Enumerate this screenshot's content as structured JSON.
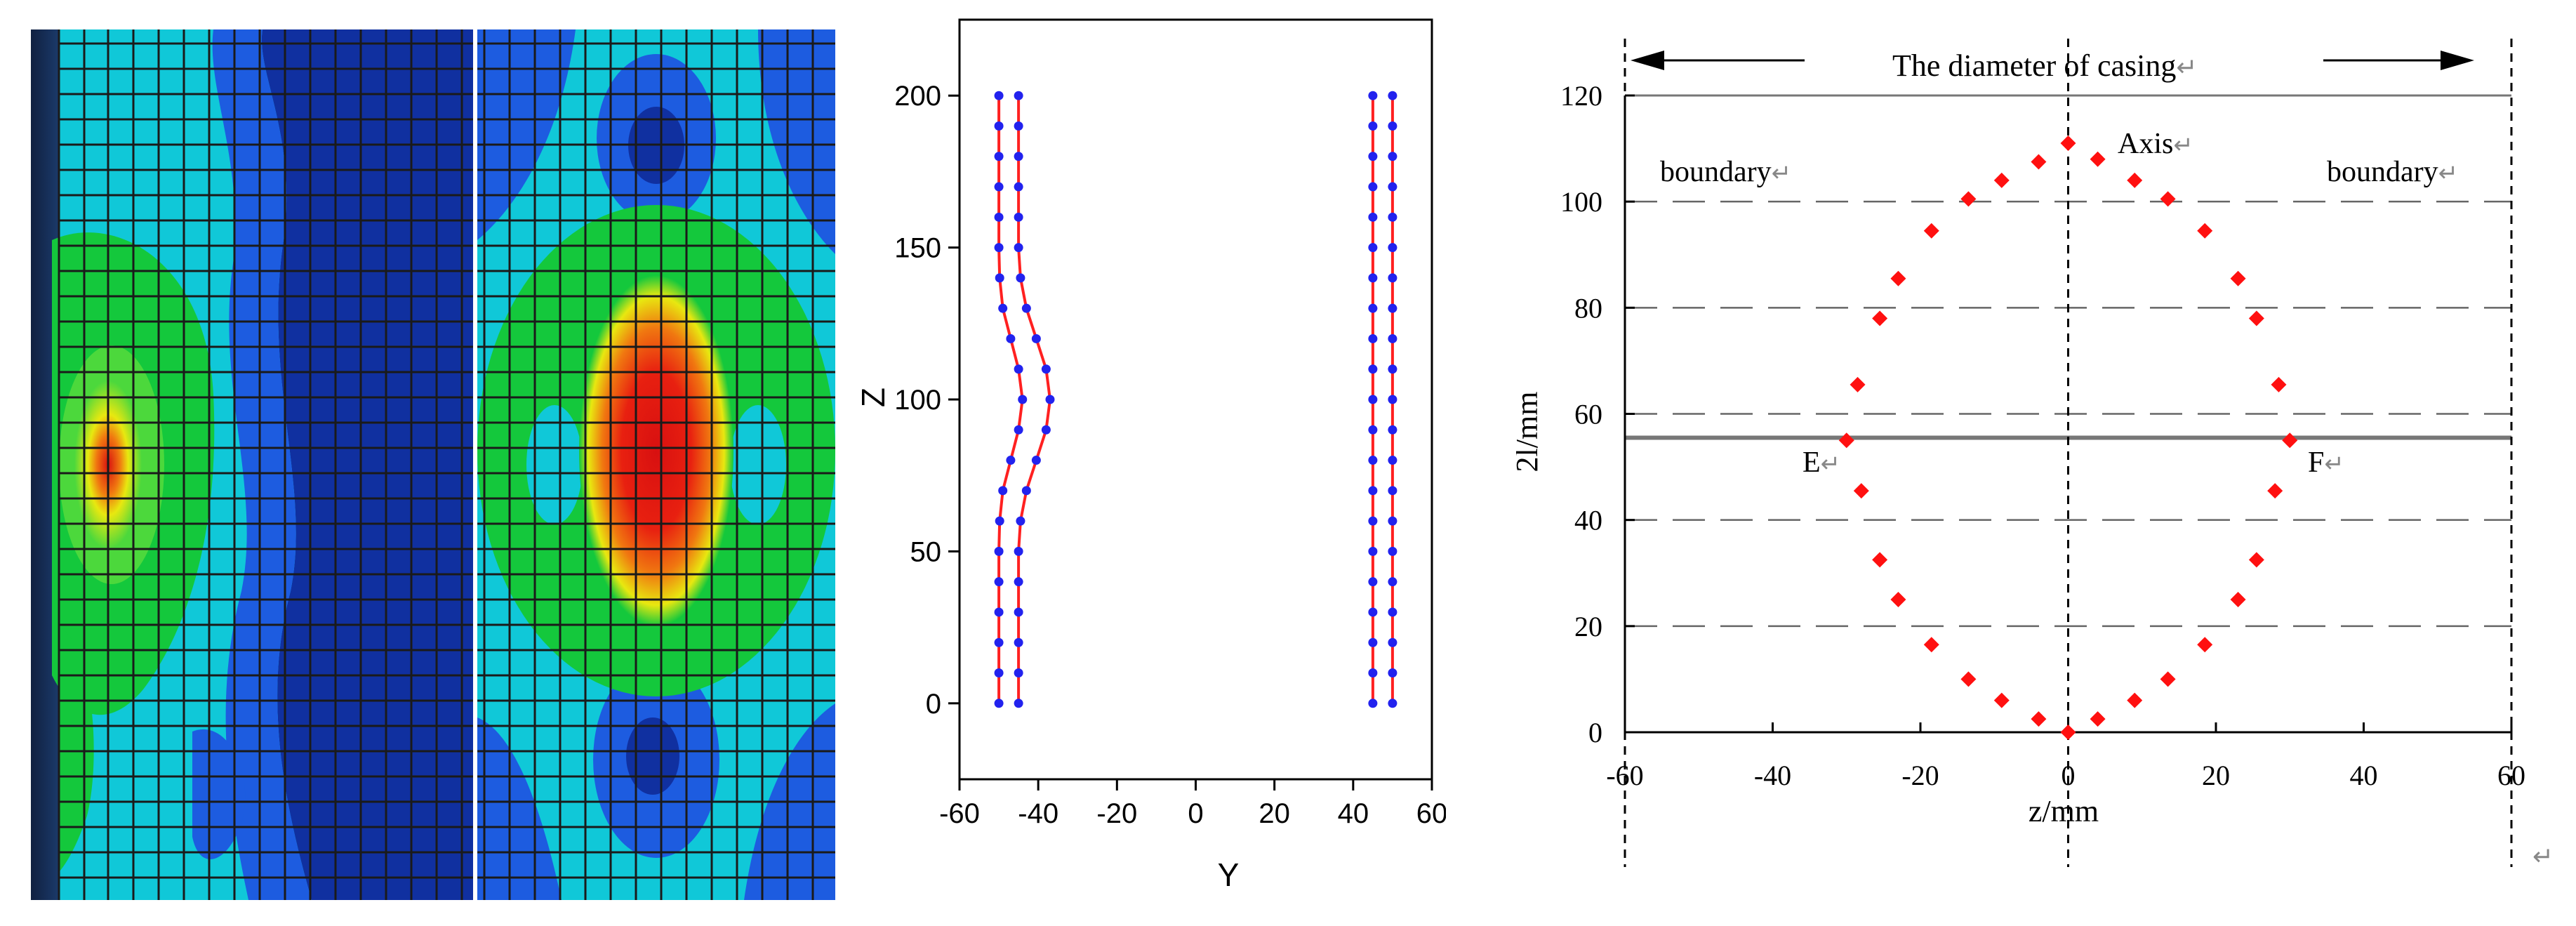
{
  "charts": [
    {
      "type": "scatter",
      "title": "",
      "xlabel": "Y",
      "ylabel": "Z",
      "xlim": [
        -60,
        60
      ],
      "ylim": [
        -25,
        225
      ],
      "xticks": [
        "-60",
        "-40",
        "-20",
        "0",
        "20",
        "40",
        "60"
      ],
      "yticks": [
        "0",
        "50",
        "100",
        "150",
        "200"
      ],
      "series": [
        {
          "color": "#2222ee",
          "line_color": "#ff2020",
          "points": [
            [
              -50,
              0
            ],
            [
              -50,
              10
            ],
            [
              -50,
              20
            ],
            [
              -50,
              30
            ],
            [
              -50,
              40
            ],
            [
              -50,
              50
            ],
            [
              -49.8,
              60
            ],
            [
              -49,
              70
            ],
            [
              -47,
              80
            ],
            [
              -45,
              90
            ],
            [
              -44,
              100
            ],
            [
              -45,
              110
            ],
            [
              -47,
              120
            ],
            [
              -49,
              130
            ],
            [
              -49.8,
              140
            ],
            [
              -50,
              150
            ],
            [
              -50,
              160
            ],
            [
              -50,
              170
            ],
            [
              -50,
              180
            ],
            [
              -50,
              190
            ],
            [
              -50,
              200
            ]
          ]
        },
        {
          "color": "#2222ee",
          "line_color": "#ff2020",
          "points": [
            [
              -45,
              0
            ],
            [
              -45,
              10
            ],
            [
              -45,
              20
            ],
            [
              -45,
              30
            ],
            [
              -45,
              40
            ],
            [
              -45,
              50
            ],
            [
              -44.5,
              60
            ],
            [
              -43,
              70
            ],
            [
              -40.5,
              80
            ],
            [
              -38,
              90
            ],
            [
              -37,
              100
            ],
            [
              -38,
              110
            ],
            [
              -40.5,
              120
            ],
            [
              -43,
              130
            ],
            [
              -44.5,
              140
            ],
            [
              -45,
              150
            ],
            [
              -45,
              160
            ],
            [
              -45,
              170
            ],
            [
              -45,
              180
            ],
            [
              -45,
              190
            ],
            [
              -45,
              200
            ]
          ]
        },
        {
          "color": "#2222ee",
          "line_color": "#ff2020",
          "points": [
            [
              45,
              0
            ],
            [
              45,
              10
            ],
            [
              45,
              20
            ],
            [
              45,
              30
            ],
            [
              45,
              40
            ],
            [
              45,
              50
            ],
            [
              45,
              60
            ],
            [
              45,
              70
            ],
            [
              45,
              80
            ],
            [
              45,
              90
            ],
            [
              45,
              100
            ],
            [
              45,
              110
            ],
            [
              45,
              120
            ],
            [
              45,
              130
            ],
            [
              45,
              140
            ],
            [
              45,
              150
            ],
            [
              45,
              160
            ],
            [
              45,
              170
            ],
            [
              45,
              180
            ],
            [
              45,
              190
            ],
            [
              45,
              200
            ]
          ]
        },
        {
          "color": "#2222ee",
          "line_color": "#ff2020",
          "points": [
            [
              50,
              0
            ],
            [
              50,
              10
            ],
            [
              50,
              20
            ],
            [
              50,
              30
            ],
            [
              50,
              40
            ],
            [
              50,
              50
            ],
            [
              50,
              60
            ],
            [
              50,
              70
            ],
            [
              50,
              80
            ],
            [
              50,
              90
            ],
            [
              50,
              100
            ],
            [
              50,
              110
            ],
            [
              50,
              120
            ],
            [
              50,
              130
            ],
            [
              50,
              140
            ],
            [
              50,
              150
            ],
            [
              50,
              160
            ],
            [
              50,
              170
            ],
            [
              50,
              180
            ],
            [
              50,
              190
            ],
            [
              50,
              200
            ]
          ]
        }
      ]
    },
    {
      "type": "scatter",
      "title": "",
      "xlabel": "z/mm",
      "ylabel": "2l/mm",
      "xlim": [
        -60,
        60
      ],
      "ylim": [
        0,
        120
      ],
      "xticks": [
        "-60",
        "-40",
        "-20",
        "0",
        "20",
        "40",
        "60"
      ],
      "yticks": [
        "0",
        "20",
        "40",
        "60",
        "80",
        "100",
        "120"
      ],
      "dashed_h_lines": [
        20,
        40,
        60,
        80,
        100
      ],
      "solid_h_lines": [
        55.5,
        120
      ],
      "vertical_dashed_lines": [
        -60,
        0,
        60
      ],
      "annotations": {
        "diameter": "The diameter of casing",
        "boundary_left": "boundary",
        "boundary_right": "boundary",
        "axis": "Axis",
        "E": "E",
        "F": "F",
        "return_mark": "↵"
      },
      "series": [
        {
          "color": "#ff1010",
          "points": [
            [
              0,
              0
            ],
            [
              4,
              2.5
            ],
            [
              9,
              6
            ],
            [
              13.5,
              10
            ],
            [
              18.5,
              16.5
            ],
            [
              23,
              25
            ],
            [
              25.5,
              32.5
            ],
            [
              28,
              45.5
            ],
            [
              30,
              55
            ],
            [
              28.5,
              65.5
            ],
            [
              25.5,
              78
            ],
            [
              23,
              85.5
            ],
            [
              18.5,
              94.5
            ],
            [
              13.5,
              100.5
            ],
            [
              9,
              104
            ],
            [
              4,
              108
            ],
            [
              0,
              111
            ],
            [
              -4,
              107.5
            ],
            [
              -9,
              104
            ],
            [
              -13.5,
              100.5
            ],
            [
              -18.5,
              94.5
            ],
            [
              -23,
              85.5
            ],
            [
              -25.5,
              78
            ],
            [
              -28.5,
              65.5
            ],
            [
              -30,
              55
            ],
            [
              -28,
              45.5
            ],
            [
              -25.5,
              32.5
            ],
            [
              -23,
              25
            ],
            [
              -18.5,
              16.5
            ],
            [
              -13.5,
              10
            ],
            [
              -9,
              6
            ],
            [
              -4,
              2.5
            ]
          ]
        }
      ]
    }
  ],
  "images": {
    "left_alt": "finite element casing stress contour (side view)",
    "right_alt": "finite element casing stress contour (front view)"
  },
  "colors": {
    "mesh": "#1a1a1a",
    "deep_blue": "#1030a0",
    "blue": "#1d5ce0",
    "cyan": "#10c8d8",
    "green": "#14c83c",
    "yellow": "#e8e810",
    "orange": "#f07810",
    "red": "#d81010"
  }
}
